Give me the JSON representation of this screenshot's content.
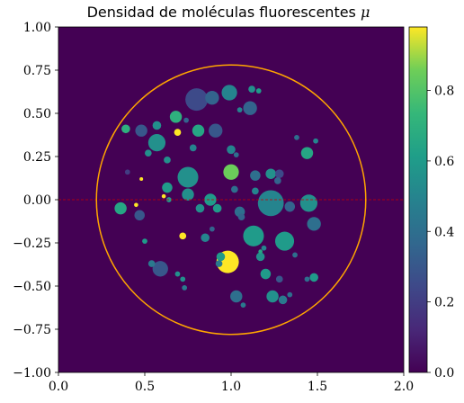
{
  "chart_data": {
    "type": "heatmap",
    "title": "Densidad de moléculas fluorescentes",
    "title_symbol": "μ",
    "xlim": [
      0.0,
      2.0
    ],
    "ylim": [
      -1.0,
      1.0
    ],
    "x_ticks": [
      "0.0",
      "0.5",
      "1.0",
      "1.5",
      "2.0"
    ],
    "y_ticks": [
      "1.00",
      "0.75",
      "0.50",
      "0.25",
      "0.00",
      "−0.25",
      "−0.50",
      "−0.75",
      "−1.00"
    ],
    "colormap": "viridis",
    "colorbar_range": [
      0.0,
      0.98
    ],
    "colorbar_ticks": [
      "0.8",
      "0.6",
      "0.4",
      "0.2",
      "0.0"
    ],
    "background_value": 0.0,
    "circle": {
      "cx": 1.0,
      "cy": 0.0,
      "r": 0.78,
      "color": "#FFA500"
    },
    "reference_line": {
      "y": 0.0,
      "color": "#cc0000",
      "style": "dashed"
    },
    "blobs": [
      {
        "x": 0.8,
        "y": 0.58,
        "r": 0.065,
        "v": 0.25
      },
      {
        "x": 0.89,
        "y": 0.59,
        "r": 0.04,
        "v": 0.35
      },
      {
        "x": 0.99,
        "y": 0.62,
        "r": 0.045,
        "v": 0.5
      },
      {
        "x": 1.12,
        "y": 0.64,
        "r": 0.02,
        "v": 0.55
      },
      {
        "x": 1.16,
        "y": 0.63,
        "r": 0.015,
        "v": 0.6
      },
      {
        "x": 1.11,
        "y": 0.53,
        "r": 0.04,
        "v": 0.35
      },
      {
        "x": 1.05,
        "y": 0.52,
        "r": 0.015,
        "v": 0.5
      },
      {
        "x": 0.68,
        "y": 0.48,
        "r": 0.035,
        "v": 0.7
      },
      {
        "x": 0.74,
        "y": 0.46,
        "r": 0.015,
        "v": 0.35
      },
      {
        "x": 0.57,
        "y": 0.43,
        "r": 0.025,
        "v": 0.55
      },
      {
        "x": 0.39,
        "y": 0.41,
        "r": 0.025,
        "v": 0.7
      },
      {
        "x": 0.48,
        "y": 0.4,
        "r": 0.035,
        "v": 0.3
      },
      {
        "x": 0.81,
        "y": 0.4,
        "r": 0.035,
        "v": 0.65
      },
      {
        "x": 0.69,
        "y": 0.39,
        "r": 0.02,
        "v": 0.98
      },
      {
        "x": 0.91,
        "y": 0.4,
        "r": 0.04,
        "v": 0.3
      },
      {
        "x": 0.57,
        "y": 0.33,
        "r": 0.05,
        "v": 0.55
      },
      {
        "x": 0.52,
        "y": 0.27,
        "r": 0.02,
        "v": 0.55
      },
      {
        "x": 0.63,
        "y": 0.23,
        "r": 0.02,
        "v": 0.55
      },
      {
        "x": 0.78,
        "y": 0.3,
        "r": 0.02,
        "v": 0.5
      },
      {
        "x": 1.0,
        "y": 0.29,
        "r": 0.025,
        "v": 0.5
      },
      {
        "x": 1.03,
        "y": 0.26,
        "r": 0.015,
        "v": 0.4
      },
      {
        "x": 1.44,
        "y": 0.27,
        "r": 0.035,
        "v": 0.65
      },
      {
        "x": 1.38,
        "y": 0.36,
        "r": 0.015,
        "v": 0.4
      },
      {
        "x": 1.49,
        "y": 0.34,
        "r": 0.015,
        "v": 0.5
      },
      {
        "x": 0.4,
        "y": 0.16,
        "r": 0.015,
        "v": 0.2
      },
      {
        "x": 0.48,
        "y": 0.12,
        "r": 0.01,
        "v": 0.98
      },
      {
        "x": 0.63,
        "y": 0.07,
        "r": 0.03,
        "v": 0.6
      },
      {
        "x": 0.75,
        "y": 0.13,
        "r": 0.06,
        "v": 0.55
      },
      {
        "x": 1.0,
        "y": 0.16,
        "r": 0.045,
        "v": 0.85
      },
      {
        "x": 1.14,
        "y": 0.14,
        "r": 0.03,
        "v": 0.4
      },
      {
        "x": 1.23,
        "y": 0.15,
        "r": 0.03,
        "v": 0.55
      },
      {
        "x": 1.28,
        "y": 0.15,
        "r": 0.025,
        "v": 0.25
      },
      {
        "x": 1.27,
        "y": 0.11,
        "r": 0.02,
        "v": 0.35
      },
      {
        "x": 0.75,
        "y": 0.03,
        "r": 0.035,
        "v": 0.55
      },
      {
        "x": 0.88,
        "y": 0.0,
        "r": 0.035,
        "v": 0.6
      },
      {
        "x": 1.02,
        "y": 0.06,
        "r": 0.02,
        "v": 0.4
      },
      {
        "x": 1.14,
        "y": 0.05,
        "r": 0.02,
        "v": 0.5
      },
      {
        "x": 0.82,
        "y": -0.05,
        "r": 0.025,
        "v": 0.55
      },
      {
        "x": 0.92,
        "y": -0.05,
        "r": 0.025,
        "v": 0.6
      },
      {
        "x": 0.64,
        "y": 0.0,
        "r": 0.015,
        "v": 0.6
      },
      {
        "x": 0.61,
        "y": 0.02,
        "r": 0.012,
        "v": 0.98
      },
      {
        "x": 0.45,
        "y": -0.03,
        "r": 0.012,
        "v": 0.98
      },
      {
        "x": 0.36,
        "y": -0.05,
        "r": 0.035,
        "v": 0.65
      },
      {
        "x": 0.47,
        "y": -0.09,
        "r": 0.03,
        "v": 0.3
      },
      {
        "x": 1.23,
        "y": -0.02,
        "r": 0.075,
        "v": 0.5
      },
      {
        "x": 1.34,
        "y": -0.04,
        "r": 0.03,
        "v": 0.35
      },
      {
        "x": 1.45,
        "y": -0.02,
        "r": 0.05,
        "v": 0.55
      },
      {
        "x": 1.48,
        "y": -0.14,
        "r": 0.04,
        "v": 0.4
      },
      {
        "x": 1.05,
        "y": -0.07,
        "r": 0.03,
        "v": 0.4
      },
      {
        "x": 1.06,
        "y": -0.1,
        "r": 0.02,
        "v": 0.35
      },
      {
        "x": 0.5,
        "y": -0.24,
        "r": 0.015,
        "v": 0.6
      },
      {
        "x": 0.72,
        "y": -0.21,
        "r": 0.02,
        "v": 0.98
      },
      {
        "x": 0.85,
        "y": -0.22,
        "r": 0.025,
        "v": 0.5
      },
      {
        "x": 0.89,
        "y": -0.17,
        "r": 0.015,
        "v": 0.35
      },
      {
        "x": 1.13,
        "y": -0.21,
        "r": 0.06,
        "v": 0.6
      },
      {
        "x": 1.31,
        "y": -0.24,
        "r": 0.055,
        "v": 0.6
      },
      {
        "x": 0.98,
        "y": -0.36,
        "r": 0.065,
        "v": 0.98
      },
      {
        "x": 0.94,
        "y": -0.33,
        "r": 0.025,
        "v": 0.6
      },
      {
        "x": 0.93,
        "y": -0.37,
        "r": 0.02,
        "v": 0.45
      },
      {
        "x": 1.17,
        "y": -0.33,
        "r": 0.025,
        "v": 0.55
      },
      {
        "x": 1.19,
        "y": -0.28,
        "r": 0.015,
        "v": 0.5
      },
      {
        "x": 1.17,
        "y": -0.3,
        "r": 0.012,
        "v": 0.65
      },
      {
        "x": 1.37,
        "y": -0.32,
        "r": 0.015,
        "v": 0.4
      },
      {
        "x": 0.59,
        "y": -0.4,
        "r": 0.045,
        "v": 0.3
      },
      {
        "x": 0.54,
        "y": -0.37,
        "r": 0.02,
        "v": 0.45
      },
      {
        "x": 0.69,
        "y": -0.43,
        "r": 0.015,
        "v": 0.55
      },
      {
        "x": 0.72,
        "y": -0.46,
        "r": 0.015,
        "v": 0.55
      },
      {
        "x": 0.73,
        "y": -0.51,
        "r": 0.015,
        "v": 0.45
      },
      {
        "x": 1.2,
        "y": -0.43,
        "r": 0.03,
        "v": 0.6
      },
      {
        "x": 1.28,
        "y": -0.46,
        "r": 0.02,
        "v": 0.3
      },
      {
        "x": 1.48,
        "y": -0.45,
        "r": 0.025,
        "v": 0.6
      },
      {
        "x": 1.44,
        "y": -0.46,
        "r": 0.015,
        "v": 0.4
      },
      {
        "x": 1.03,
        "y": -0.56,
        "r": 0.035,
        "v": 0.4
      },
      {
        "x": 1.07,
        "y": -0.61,
        "r": 0.015,
        "v": 0.45
      },
      {
        "x": 1.24,
        "y": -0.56,
        "r": 0.035,
        "v": 0.55
      },
      {
        "x": 1.3,
        "y": -0.58,
        "r": 0.025,
        "v": 0.45
      },
      {
        "x": 1.34,
        "y": -0.55,
        "r": 0.015,
        "v": 0.4
      }
    ]
  }
}
